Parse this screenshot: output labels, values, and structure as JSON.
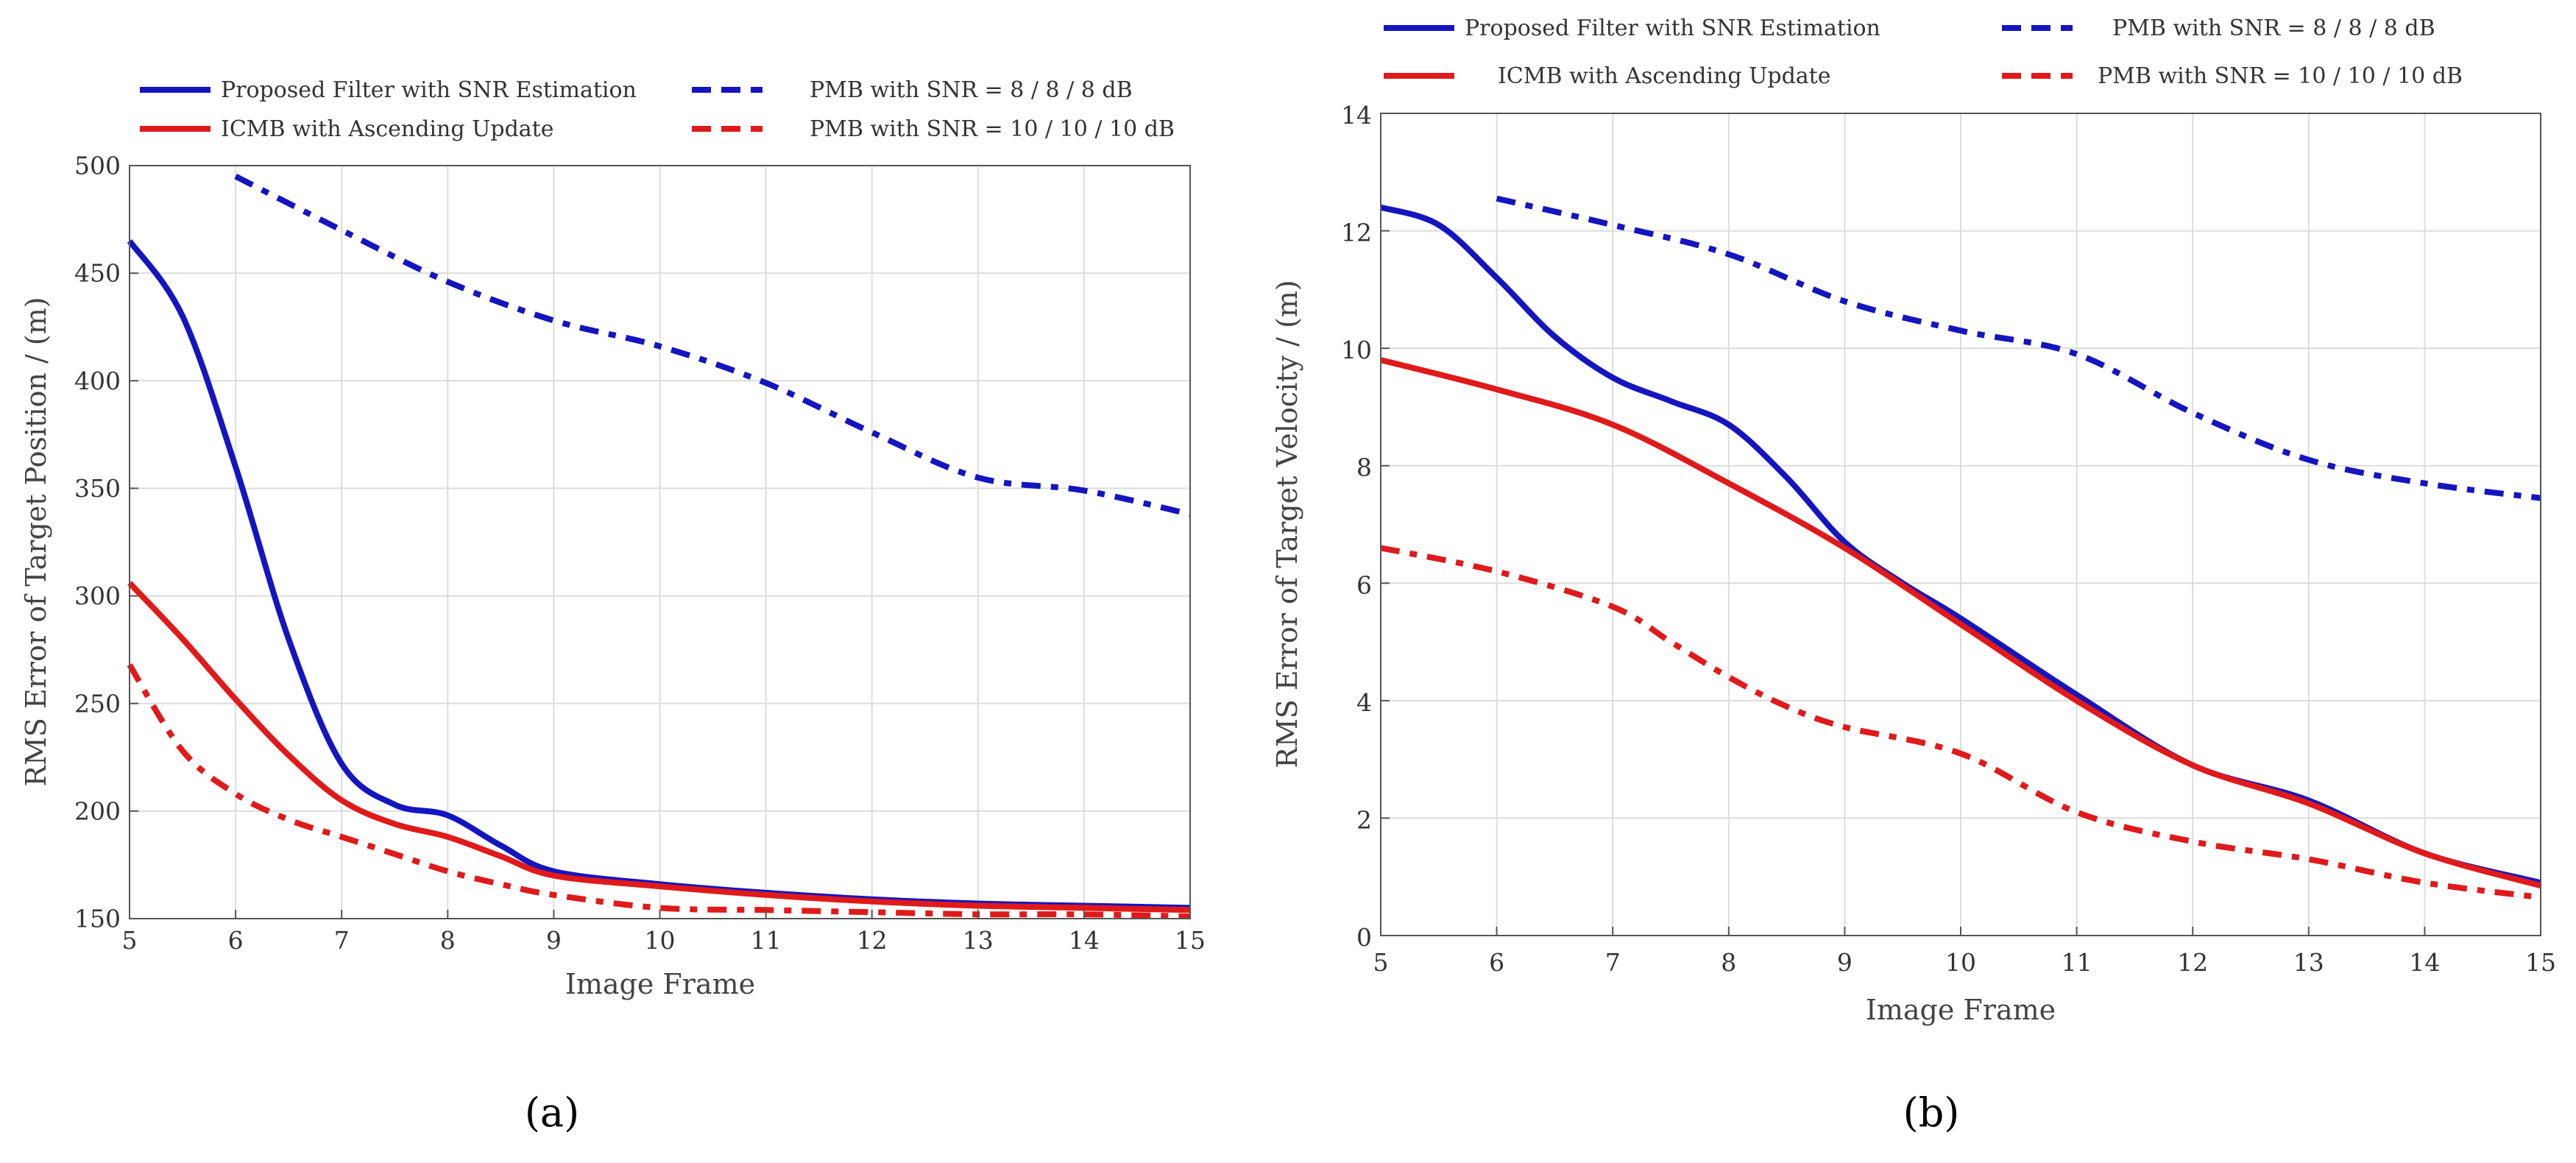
{
  "figure": {
    "panel_labels": [
      "(a)",
      "(b)"
    ],
    "legend_items": [
      {
        "label": "Proposed Filter with SNR Estimation",
        "color": "#1515c0",
        "style": "solid"
      },
      {
        "label": "ICMB with Ascending Update",
        "color": "#e01a1a",
        "style": "solid"
      },
      {
        "label": "PMB with SNR = 8 / 8 / 8 dB",
        "color": "#1515c0",
        "style": "dashdot"
      },
      {
        "label": "PMB with SNR = 10 / 10 / 10 dB",
        "color": "#e01a1a",
        "style": "dashdot"
      }
    ]
  },
  "chart_data": [
    {
      "type": "line",
      "panel": "(a)",
      "title": "",
      "xlabel": "Image Frame",
      "ylabel": "RMS Error of Target Position / (m)",
      "xlim": [
        5,
        15
      ],
      "ylim": [
        150,
        500
      ],
      "xticks": [
        5,
        6,
        7,
        8,
        9,
        10,
        11,
        12,
        13,
        14,
        15
      ],
      "yticks": [
        150,
        200,
        250,
        300,
        350,
        400,
        450,
        500
      ],
      "grid": true,
      "legend_position": "top, outside plot area",
      "series": [
        {
          "name": "Proposed Filter with SNR Estimation",
          "color": "#1515c0",
          "style": "solid",
          "x": [
            5,
            5.5,
            6,
            6.5,
            7,
            7.5,
            8,
            8.5,
            9,
            10,
            11,
            12,
            13,
            14,
            15
          ],
          "y": [
            465,
            430,
            360,
            280,
            222,
            203,
            198,
            184,
            172,
            166,
            162,
            159,
            157,
            156,
            155
          ]
        },
        {
          "name": "ICMB with Ascending Update",
          "color": "#e01a1a",
          "style": "solid",
          "x": [
            5,
            5.5,
            6,
            6.5,
            7,
            7.5,
            8,
            8.5,
            9,
            10,
            11,
            12,
            13,
            14,
            15
          ],
          "y": [
            306,
            280,
            252,
            226,
            205,
            194,
            188,
            179,
            170,
            165,
            161,
            158,
            156,
            155,
            154
          ]
        },
        {
          "name": "PMB with SNR = 8 / 8 / 8 dB",
          "color": "#1515c0",
          "style": "dashdot",
          "x": [
            6,
            7,
            8,
            9,
            10,
            11,
            12,
            13,
            14,
            15
          ],
          "y": [
            495,
            470,
            446,
            428,
            416,
            399,
            376,
            355,
            349,
            338
          ]
        },
        {
          "name": "PMB with SNR = 10 / 10 / 10 dB",
          "color": "#e01a1a",
          "style": "dashdot",
          "x": [
            5,
            5.5,
            6,
            6.5,
            7,
            7.5,
            8,
            8.5,
            9,
            10,
            11,
            12,
            13,
            14,
            15
          ],
          "y": [
            268,
            228,
            208,
            196,
            188,
            180,
            172,
            166,
            161,
            155,
            154,
            153,
            152,
            152,
            151
          ]
        }
      ]
    },
    {
      "type": "line",
      "panel": "(b)",
      "title": "",
      "xlabel": "Image Frame",
      "ylabel": "RMS Error of Target Velocity / (m)",
      "xlim": [
        5,
        15
      ],
      "ylim": [
        0,
        14
      ],
      "xticks": [
        5,
        6,
        7,
        8,
        9,
        10,
        11,
        12,
        13,
        14,
        15
      ],
      "yticks": [
        0,
        2,
        4,
        6,
        8,
        10,
        12,
        14
      ],
      "grid": true,
      "legend_position": "top, outside plot area",
      "series": [
        {
          "name": "Proposed Filter with SNR Estimation",
          "color": "#1515c0",
          "style": "solid",
          "x": [
            5,
            5.5,
            6,
            6.5,
            7,
            7.5,
            8,
            8.5,
            9,
            9.5,
            10,
            11,
            12,
            13,
            14,
            15
          ],
          "y": [
            12.4,
            12.1,
            11.2,
            10.2,
            9.5,
            9.1,
            8.7,
            7.8,
            6.7,
            6.0,
            5.4,
            4.1,
            2.9,
            2.3,
            1.4,
            0.9
          ]
        },
        {
          "name": "ICMB with Ascending Update",
          "color": "#e01a1a",
          "style": "solid",
          "x": [
            5,
            6,
            7,
            8,
            9,
            10,
            11,
            12,
            13,
            14,
            15
          ],
          "y": [
            9.8,
            9.3,
            8.7,
            7.7,
            6.6,
            5.3,
            4.0,
            2.9,
            2.25,
            1.4,
            0.85
          ]
        },
        {
          "name": "PMB with SNR = 8 / 8 / 8 dB",
          "color": "#1515c0",
          "style": "dashdot",
          "x": [
            6,
            7,
            8,
            9,
            10,
            11,
            12,
            13,
            14,
            15
          ],
          "y": [
            12.55,
            12.1,
            11.6,
            10.8,
            10.3,
            9.9,
            8.9,
            8.1,
            7.7,
            7.45
          ]
        },
        {
          "name": "PMB with SNR = 10 / 10 / 10 dB",
          "color": "#e01a1a",
          "style": "dashdot",
          "x": [
            5,
            6,
            7,
            7.5,
            8,
            8.5,
            9,
            10,
            11,
            12,
            13,
            14,
            15
          ],
          "y": [
            6.6,
            6.2,
            5.6,
            5.0,
            4.4,
            3.9,
            3.55,
            3.1,
            2.1,
            1.6,
            1.3,
            0.9,
            0.65
          ]
        }
      ]
    }
  ]
}
